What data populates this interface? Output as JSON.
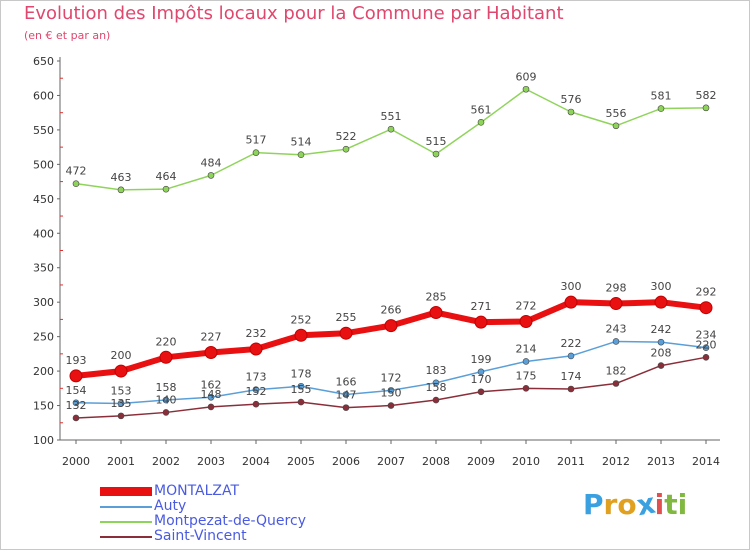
{
  "title": "Evolution des Impôts locaux pour la Commune par Habitant",
  "subtitle": "(en € et par an)",
  "logo": {
    "letters": [
      "P",
      "r",
      "o",
      "x",
      "i",
      "t",
      "i"
    ],
    "colors": [
      "#3aa0e0",
      "#e0a020",
      "#e0a020",
      "#3aa0e0",
      "#e05050",
      "#80b840",
      "#80b840"
    ]
  },
  "chart_data": {
    "type": "line",
    "x": [
      2000,
      2001,
      2002,
      2003,
      2004,
      2005,
      2006,
      2007,
      2008,
      2009,
      2010,
      2011,
      2012,
      2013,
      2014
    ],
    "ylim": [
      100,
      650
    ],
    "yticks": [
      100,
      150,
      200,
      250,
      300,
      350,
      400,
      450,
      500,
      550,
      600,
      650
    ],
    "grid": false,
    "legend_position": "bottom-left",
    "series": [
      {
        "name": "MONTALZAT",
        "color": "#e81010",
        "values": [
          193,
          200,
          220,
          227,
          232,
          252,
          255,
          266,
          285,
          271,
          272,
          300,
          298,
          300,
          292
        ]
      },
      {
        "name": "Auty",
        "color": "#5a9fd8",
        "values": [
          154,
          153,
          158,
          162,
          173,
          178,
          166,
          172,
          183,
          199,
          214,
          222,
          243,
          242,
          234
        ]
      },
      {
        "name": "Montpezat-de-Quercy",
        "color": "#8fd45a",
        "values": [
          472,
          463,
          464,
          484,
          517,
          514,
          522,
          551,
          515,
          561,
          609,
          576,
          556,
          581,
          582
        ]
      },
      {
        "name": "Saint-Vincent",
        "color": "#8a2f3a",
        "values": [
          132,
          135,
          140,
          148,
          152,
          155,
          147,
          150,
          158,
          170,
          175,
          174,
          182,
          208,
          220
        ]
      }
    ]
  }
}
